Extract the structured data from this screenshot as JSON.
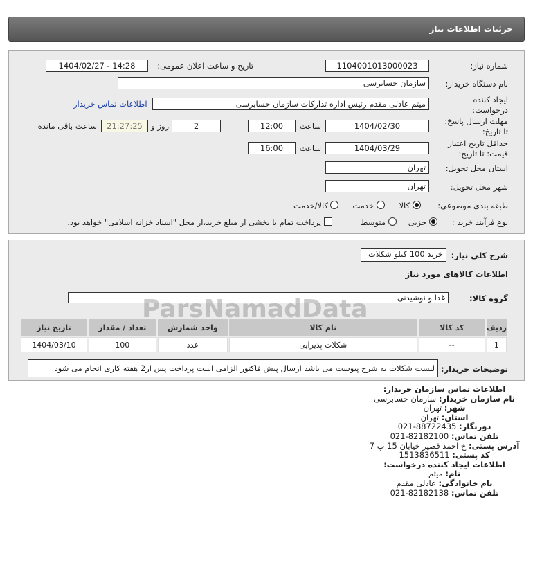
{
  "header": {
    "title": "جزئیات اطلاعات نیاز"
  },
  "form": {
    "need_number_label": "شماره نیاز:",
    "need_number": "1104001013000023",
    "announce_label": "تاریخ و ساعت اعلان عمومی:",
    "announce_value": "1404/02/27 - 14:28",
    "buyer_label": "نام دستگاه خریدار:",
    "buyer_value": "سازمان حسابرسی",
    "requester_label_1": "ایجاد کننده",
    "requester_label_2": "درخواست:",
    "requester_value": "میثم عادلی مقدم رئیس اداره تدارکات سازمان حسابرسی",
    "contact_link": "اطلاعات تماس خریدار",
    "deadline_label_1": "مهلت ارسال پاسخ:",
    "deadline_label_2": "تا تاریخ:",
    "deadline_date": "1404/02/30",
    "time_label": "ساعت",
    "deadline_time": "12:00",
    "days": "2",
    "days_label": "روز و",
    "remaining": "21:27:25",
    "remaining_label": "ساعت باقی مانده",
    "validity_label_1": "حداقل تاریخ اعتبار",
    "validity_label_2": "قیمت: تا تاریخ:",
    "validity_date": "1404/03/29",
    "validity_time": "16:00",
    "province_label": "استان محل تحویل:",
    "province": "تهران",
    "city_label": "شهر محل تحویل:",
    "city": "تهران",
    "category_label": "طبقه بندی موضوعی:",
    "category_options": [
      "کالا",
      "خدمت",
      "کالا/خدمت"
    ],
    "category_selected": "کالا",
    "process_label": "نوع فرآیند خرید :",
    "process_options": [
      "جزیی",
      "متوسط"
    ],
    "process_selected": "جزیی",
    "payment_note": "پرداخت تمام یا بخشی از مبلغ خرید،از محل \"اسناد خزانه اسلامی\" خواهد بود.",
    "payment_checked": false
  },
  "details": {
    "summary_label": "شرح کلی نیاز:",
    "summary": "خرید 100 کیلو شکلات",
    "goods_title": "اطلاعات کالاهای مورد نیاز",
    "group_label": "گروه کالا:",
    "group": "غذا و نوشیدنی",
    "table": {
      "headers": [
        "ردیف",
        "کد کالا",
        "نام کالا",
        "واحد شمارش",
        "تعداد / مقدار",
        "تاریخ نیاز"
      ],
      "rows": [
        [
          "1",
          "--",
          "شکلات پذیرایی",
          "عدد",
          "100",
          "1404/03/10"
        ]
      ]
    },
    "desc_label": "توضیحات خریدار:",
    "desc": "لیست شکلات به شرح پیوست می باشد ارسال پیش فاکتور الزامی است پرداخت پس از2 هفته کاری انجام می شود"
  },
  "contact": {
    "title": "اطلاعات تماس سازمان خریدار:",
    "org_label": "نام سازمان خریدار:",
    "org": "سازمان حسابرسی",
    "city_label": "شهر:",
    "city": "تهران",
    "province_label": "استان:",
    "province": "تهران",
    "fax_label": "دورنگار:",
    "fax": "88722435-021",
    "phone_label": "تلفن تماس:",
    "phone": "82182100-021",
    "address_label": "آدرس پستی:",
    "address": "خ احمد قصیر خیابان 15 پ 7",
    "postal_label": "کد پستی:",
    "postal": "1513836511",
    "creator_title": "اطلاعات ایجاد کننده درخواست:",
    "name_label": "نام:",
    "name": "میثم",
    "family_label": "نام خانوادگی:",
    "family": "عادلی مقدم",
    "creator_phone_label": "تلفن تماس:",
    "creator_phone": "82182138-021"
  },
  "watermark": "ParsNamadData"
}
